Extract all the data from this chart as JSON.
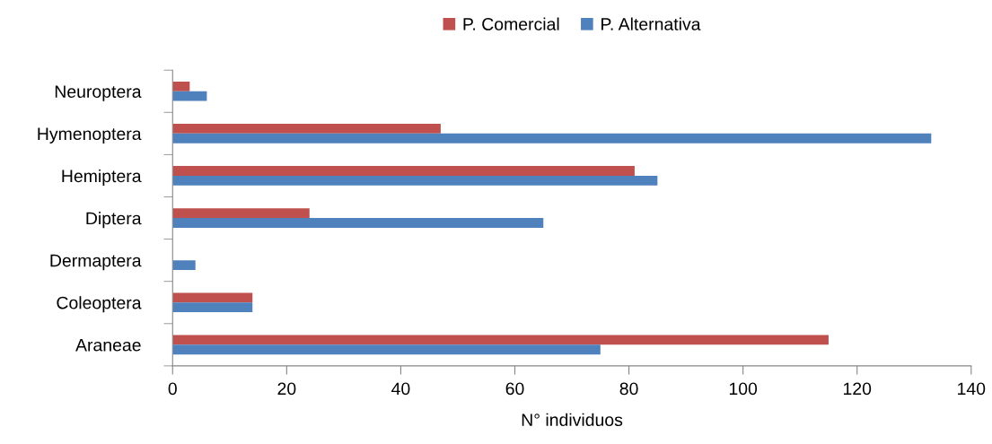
{
  "chart_data": {
    "type": "bar",
    "orientation": "horizontal",
    "xlabel": "N° individuos",
    "categories": [
      "Neuroptera",
      "Hymenoptera",
      "Hemiptera",
      "Diptera",
      "Dermaptera",
      "Coleoptera",
      "Araneae"
    ],
    "series": [
      {
        "name": "P. Comercial",
        "color": "#c0504d",
        "values": [
          3,
          47,
          81,
          24,
          0,
          14,
          115
        ]
      },
      {
        "name": "P. Alternativa",
        "color": "#4f81bd",
        "values": [
          6,
          133,
          85,
          65,
          4,
          14,
          75
        ]
      }
    ],
    "xlim": [
      0,
      140
    ],
    "xticks": [
      0,
      20,
      40,
      60,
      80,
      100,
      120,
      140
    ],
    "grid": false,
    "legend": "top"
  }
}
